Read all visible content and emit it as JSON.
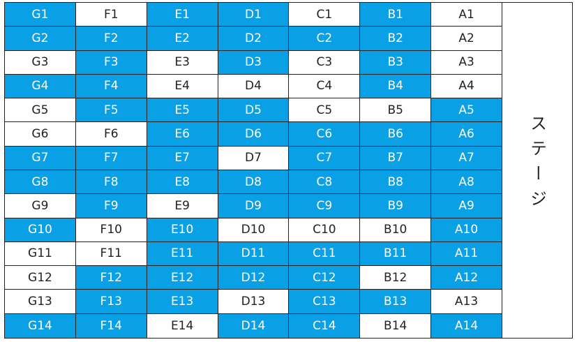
{
  "stage": "ステージ",
  "seats": [
    [
      {
        "label": "G1",
        "color": "#0aa0e6"
      },
      {
        "label": "F1",
        "color": "#ffffff"
      },
      {
        "label": "E1",
        "color": "#0aa0e6"
      },
      {
        "label": "D1",
        "color": "#0aa0e6"
      },
      {
        "label": "C1",
        "color": "#ffffff"
      },
      {
        "label": "B1",
        "color": "#0aa0e6"
      },
      {
        "label": "A1",
        "color": "#ffffff"
      }
    ],
    [
      {
        "label": "G2",
        "color": "#0aa0e6"
      },
      {
        "label": "F2",
        "color": "#0aa0e6"
      },
      {
        "label": "E2",
        "color": "#0aa0e6"
      },
      {
        "label": "D2",
        "color": "#0aa0e6"
      },
      {
        "label": "C2",
        "color": "#0aa0e6"
      },
      {
        "label": "B2",
        "color": "#0aa0e6"
      },
      {
        "label": "A2",
        "color": "#ffffff"
      }
    ],
    [
      {
        "label": "G3",
        "color": "#ffffff"
      },
      {
        "label": "F3",
        "color": "#0aa0e6"
      },
      {
        "label": "E3",
        "color": "#ffffff"
      },
      {
        "label": "D3",
        "color": "#0aa0e6"
      },
      {
        "label": "C3",
        "color": "#ffffff"
      },
      {
        "label": "B3",
        "color": "#0aa0e6"
      },
      {
        "label": "A3",
        "color": "#ffffff"
      }
    ],
    [
      {
        "label": "G4",
        "color": "#0aa0e6"
      },
      {
        "label": "F4",
        "color": "#0aa0e6"
      },
      {
        "label": "E4",
        "color": "#ffffff"
      },
      {
        "label": "D4",
        "color": "#ffffff"
      },
      {
        "label": "C4",
        "color": "#ffffff"
      },
      {
        "label": "B4",
        "color": "#0aa0e6"
      },
      {
        "label": "A4",
        "color": "#ffffff"
      }
    ],
    [
      {
        "label": "G5",
        "color": "#ffffff"
      },
      {
        "label": "F5",
        "color": "#0aa0e6"
      },
      {
        "label": "E5",
        "color": "#0aa0e6"
      },
      {
        "label": "D5",
        "color": "#0aa0e6"
      },
      {
        "label": "C5",
        "color": "#ffffff"
      },
      {
        "label": "B5",
        "color": "#ffffff"
      },
      {
        "label": "A5",
        "color": "#0aa0e6"
      }
    ],
    [
      {
        "label": "G6",
        "color": "#ffffff"
      },
      {
        "label": "F6",
        "color": "#ffffff"
      },
      {
        "label": "E6",
        "color": "#0aa0e6"
      },
      {
        "label": "D6",
        "color": "#0aa0e6"
      },
      {
        "label": "C6",
        "color": "#0aa0e6"
      },
      {
        "label": "B6",
        "color": "#0aa0e6"
      },
      {
        "label": "A6",
        "color": "#0aa0e6"
      }
    ],
    [
      {
        "label": "G7",
        "color": "#0aa0e6"
      },
      {
        "label": "F7",
        "color": "#0aa0e6"
      },
      {
        "label": "E7",
        "color": "#0aa0e6"
      },
      {
        "label": "D7",
        "color": "#ffffff"
      },
      {
        "label": "C7",
        "color": "#0aa0e6"
      },
      {
        "label": "B7",
        "color": "#0aa0e6"
      },
      {
        "label": "A7",
        "color": "#0aa0e6"
      }
    ],
    [
      {
        "label": "G8",
        "color": "#0aa0e6"
      },
      {
        "label": "F8",
        "color": "#0aa0e6"
      },
      {
        "label": "E8",
        "color": "#0aa0e6"
      },
      {
        "label": "D8",
        "color": "#0aa0e6"
      },
      {
        "label": "C8",
        "color": "#0aa0e6"
      },
      {
        "label": "B8",
        "color": "#0aa0e6"
      },
      {
        "label": "A8",
        "color": "#0aa0e6"
      }
    ],
    [
      {
        "label": "G9",
        "color": "#ffffff"
      },
      {
        "label": "F9",
        "color": "#0aa0e6"
      },
      {
        "label": "E9",
        "color": "#ffffff"
      },
      {
        "label": "D9",
        "color": "#0aa0e6"
      },
      {
        "label": "C9",
        "color": "#0aa0e6"
      },
      {
        "label": "B9",
        "color": "#0aa0e6"
      },
      {
        "label": "A9",
        "color": "#0aa0e6"
      }
    ],
    [
      {
        "label": "G10",
        "color": "#0aa0e6"
      },
      {
        "label": "F10",
        "color": "#ffffff"
      },
      {
        "label": "E10",
        "color": "#0aa0e6"
      },
      {
        "label": "D10",
        "color": "#ffffff"
      },
      {
        "label": "C10",
        "color": "#ffffff"
      },
      {
        "label": "B10",
        "color": "#ffffff"
      },
      {
        "label": "A10",
        "color": "#0aa0e6"
      }
    ],
    [
      {
        "label": "G11",
        "color": "#ffffff"
      },
      {
        "label": "F11",
        "color": "#ffffff"
      },
      {
        "label": "E11",
        "color": "#0aa0e6"
      },
      {
        "label": "D11",
        "color": "#0aa0e6"
      },
      {
        "label": "C11",
        "color": "#0aa0e6"
      },
      {
        "label": "B11",
        "color": "#0aa0e6"
      },
      {
        "label": "A11",
        "color": "#0aa0e6"
      }
    ],
    [
      {
        "label": "G12",
        "color": "#ffffff"
      },
      {
        "label": "F12",
        "color": "#0aa0e6"
      },
      {
        "label": "E12",
        "color": "#0aa0e6"
      },
      {
        "label": "D12",
        "color": "#0aa0e6"
      },
      {
        "label": "C12",
        "color": "#0aa0e6"
      },
      {
        "label": "B12",
        "color": "#ffffff"
      },
      {
        "label": "A12",
        "color": "#0aa0e6"
      }
    ],
    [
      {
        "label": "G13",
        "color": "#ffffff"
      },
      {
        "label": "F13",
        "color": "#0aa0e6"
      },
      {
        "label": "E13",
        "color": "#0aa0e6"
      },
      {
        "label": "D13",
        "color": "#ffffff"
      },
      {
        "label": "C13",
        "color": "#0aa0e6"
      },
      {
        "label": "B13",
        "color": "#0aa0e6"
      },
      {
        "label": "A13",
        "color": "#ffffff"
      }
    ],
    [
      {
        "label": "G14",
        "color": "#0aa0e6"
      },
      {
        "label": "F14",
        "color": "#0aa0e6"
      },
      {
        "label": "E14",
        "color": "#ffffff"
      },
      {
        "label": "D14",
        "color": "#0aa0e6"
      },
      {
        "label": "C14",
        "color": "#0aa0e6"
      },
      {
        "label": "B14",
        "color": "#ffffff"
      },
      {
        "label": "A14",
        "color": "#0aa0e6"
      }
    ]
  ]
}
